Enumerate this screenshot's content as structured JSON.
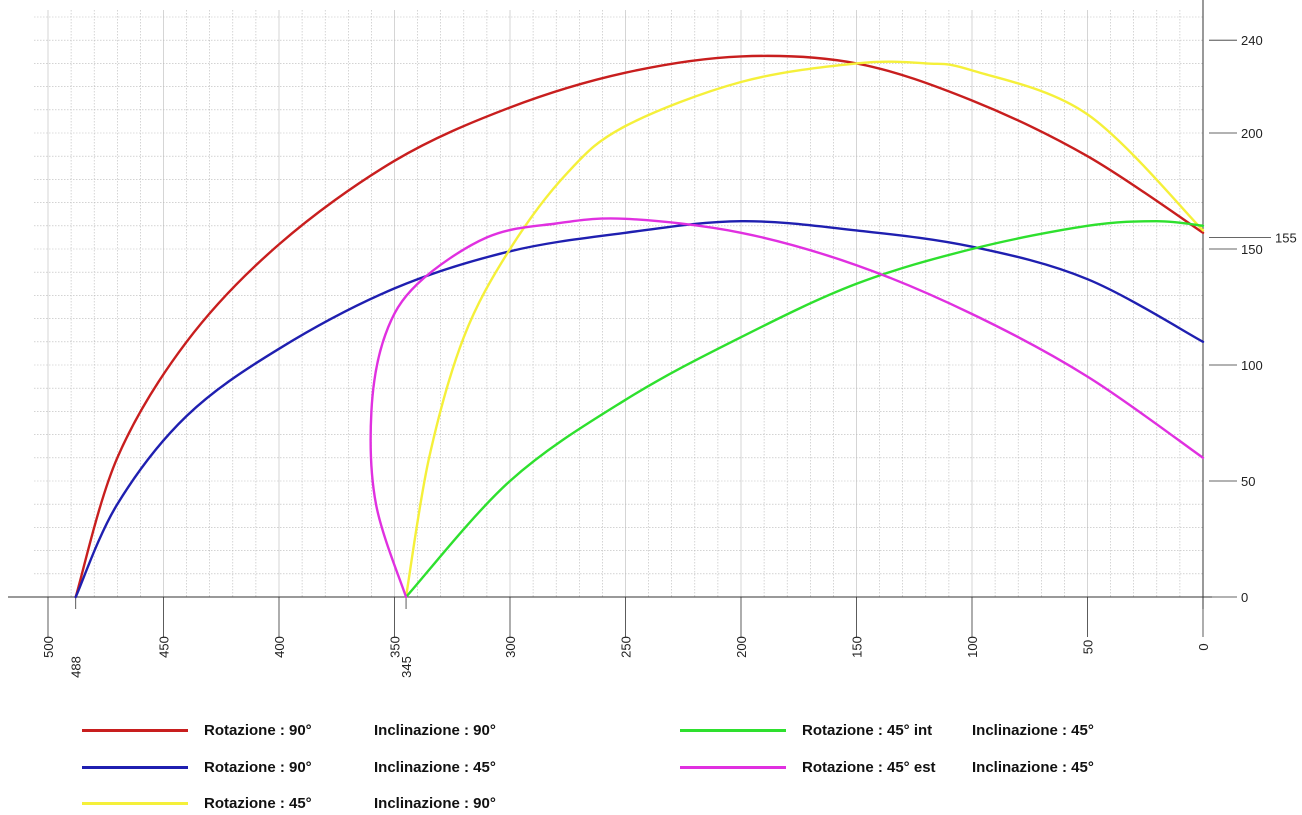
{
  "chart_data": {
    "type": "line",
    "title": "",
    "xlabel": "",
    "ylabel": "",
    "x_reversed": true,
    "xlim": [
      510,
      0
    ],
    "ylim": [
      0,
      250
    ],
    "grid": true,
    "x_ticks": [
      500,
      450,
      400,
      350,
      300,
      250,
      200,
      150,
      100,
      50,
      0
    ],
    "x_special_labels": [
      488,
      345
    ],
    "y_ticks": [
      0,
      50,
      100,
      150,
      200,
      240
    ],
    "y_special_labels": [
      155
    ],
    "legend_position": "bottom",
    "series": [
      {
        "name": "Rotazione : 90°   Inclinazione : 90°",
        "rotation_label": "Rotazione : 90°",
        "inclination_label": "Inclinazione : 90°",
        "color": "#c81e1e",
        "points": [
          [
            488,
            0
          ],
          [
            470,
            60
          ],
          [
            440,
            110
          ],
          [
            400,
            152
          ],
          [
            350,
            188
          ],
          [
            300,
            211
          ],
          [
            250,
            226
          ],
          [
            200,
            233
          ],
          [
            150,
            230
          ],
          [
            100,
            214
          ],
          [
            50,
            190
          ],
          [
            0,
            157
          ]
        ]
      },
      {
        "name": "Rotazione : 90°   Inclinazione : 45°",
        "rotation_label": "Rotazione : 90°",
        "inclination_label": "Inclinazione : 45°",
        "color": "#1f1fb0",
        "points": [
          [
            488,
            0
          ],
          [
            470,
            40
          ],
          [
            440,
            78
          ],
          [
            400,
            107
          ],
          [
            350,
            133
          ],
          [
            300,
            149
          ],
          [
            250,
            157
          ],
          [
            200,
            162
          ],
          [
            150,
            158
          ],
          [
            100,
            151
          ],
          [
            50,
            137
          ],
          [
            0,
            110
          ]
        ]
      },
      {
        "name": "Rotazione : 45°   Inclinazione : 90°",
        "rotation_label": "Rotazione : 45°",
        "inclination_label": "Inclinazione : 90°",
        "color": "#f5f03a",
        "points": [
          [
            345,
            0
          ],
          [
            335,
            60
          ],
          [
            320,
            112
          ],
          [
            300,
            150
          ],
          [
            275,
            183
          ],
          [
            250,
            203
          ],
          [
            200,
            222
          ],
          [
            150,
            230
          ],
          [
            120,
            230
          ],
          [
            100,
            227
          ],
          [
            50,
            208
          ],
          [
            0,
            158
          ]
        ]
      },
      {
        "name": "Rotazione : 45° int   Inclinazione : 45°",
        "rotation_label": "Rotazione : 45° int",
        "inclination_label": "Inclinazione : 45°",
        "color": "#2ee02e",
        "points": [
          [
            345,
            0
          ],
          [
            300,
            50
          ],
          [
            250,
            85
          ],
          [
            200,
            112
          ],
          [
            150,
            135
          ],
          [
            100,
            150
          ],
          [
            50,
            160
          ],
          [
            20,
            162
          ],
          [
            0,
            160
          ]
        ]
      },
      {
        "name": "Rotazione : 45° est   Inclinazione : 45°",
        "rotation_label": "Rotazione : 45° est",
        "inclination_label": "Inclinazione : 45°",
        "color": "#e030e0",
        "points": [
          [
            345,
            0
          ],
          [
            358,
            40
          ],
          [
            360,
            80
          ],
          [
            354,
            113
          ],
          [
            340,
            135
          ],
          [
            310,
            155
          ],
          [
            280,
            161
          ],
          [
            250,
            163
          ],
          [
            200,
            157
          ],
          [
            150,
            143
          ],
          [
            100,
            122
          ],
          [
            50,
            95
          ],
          [
            0,
            60
          ]
        ]
      }
    ]
  }
}
